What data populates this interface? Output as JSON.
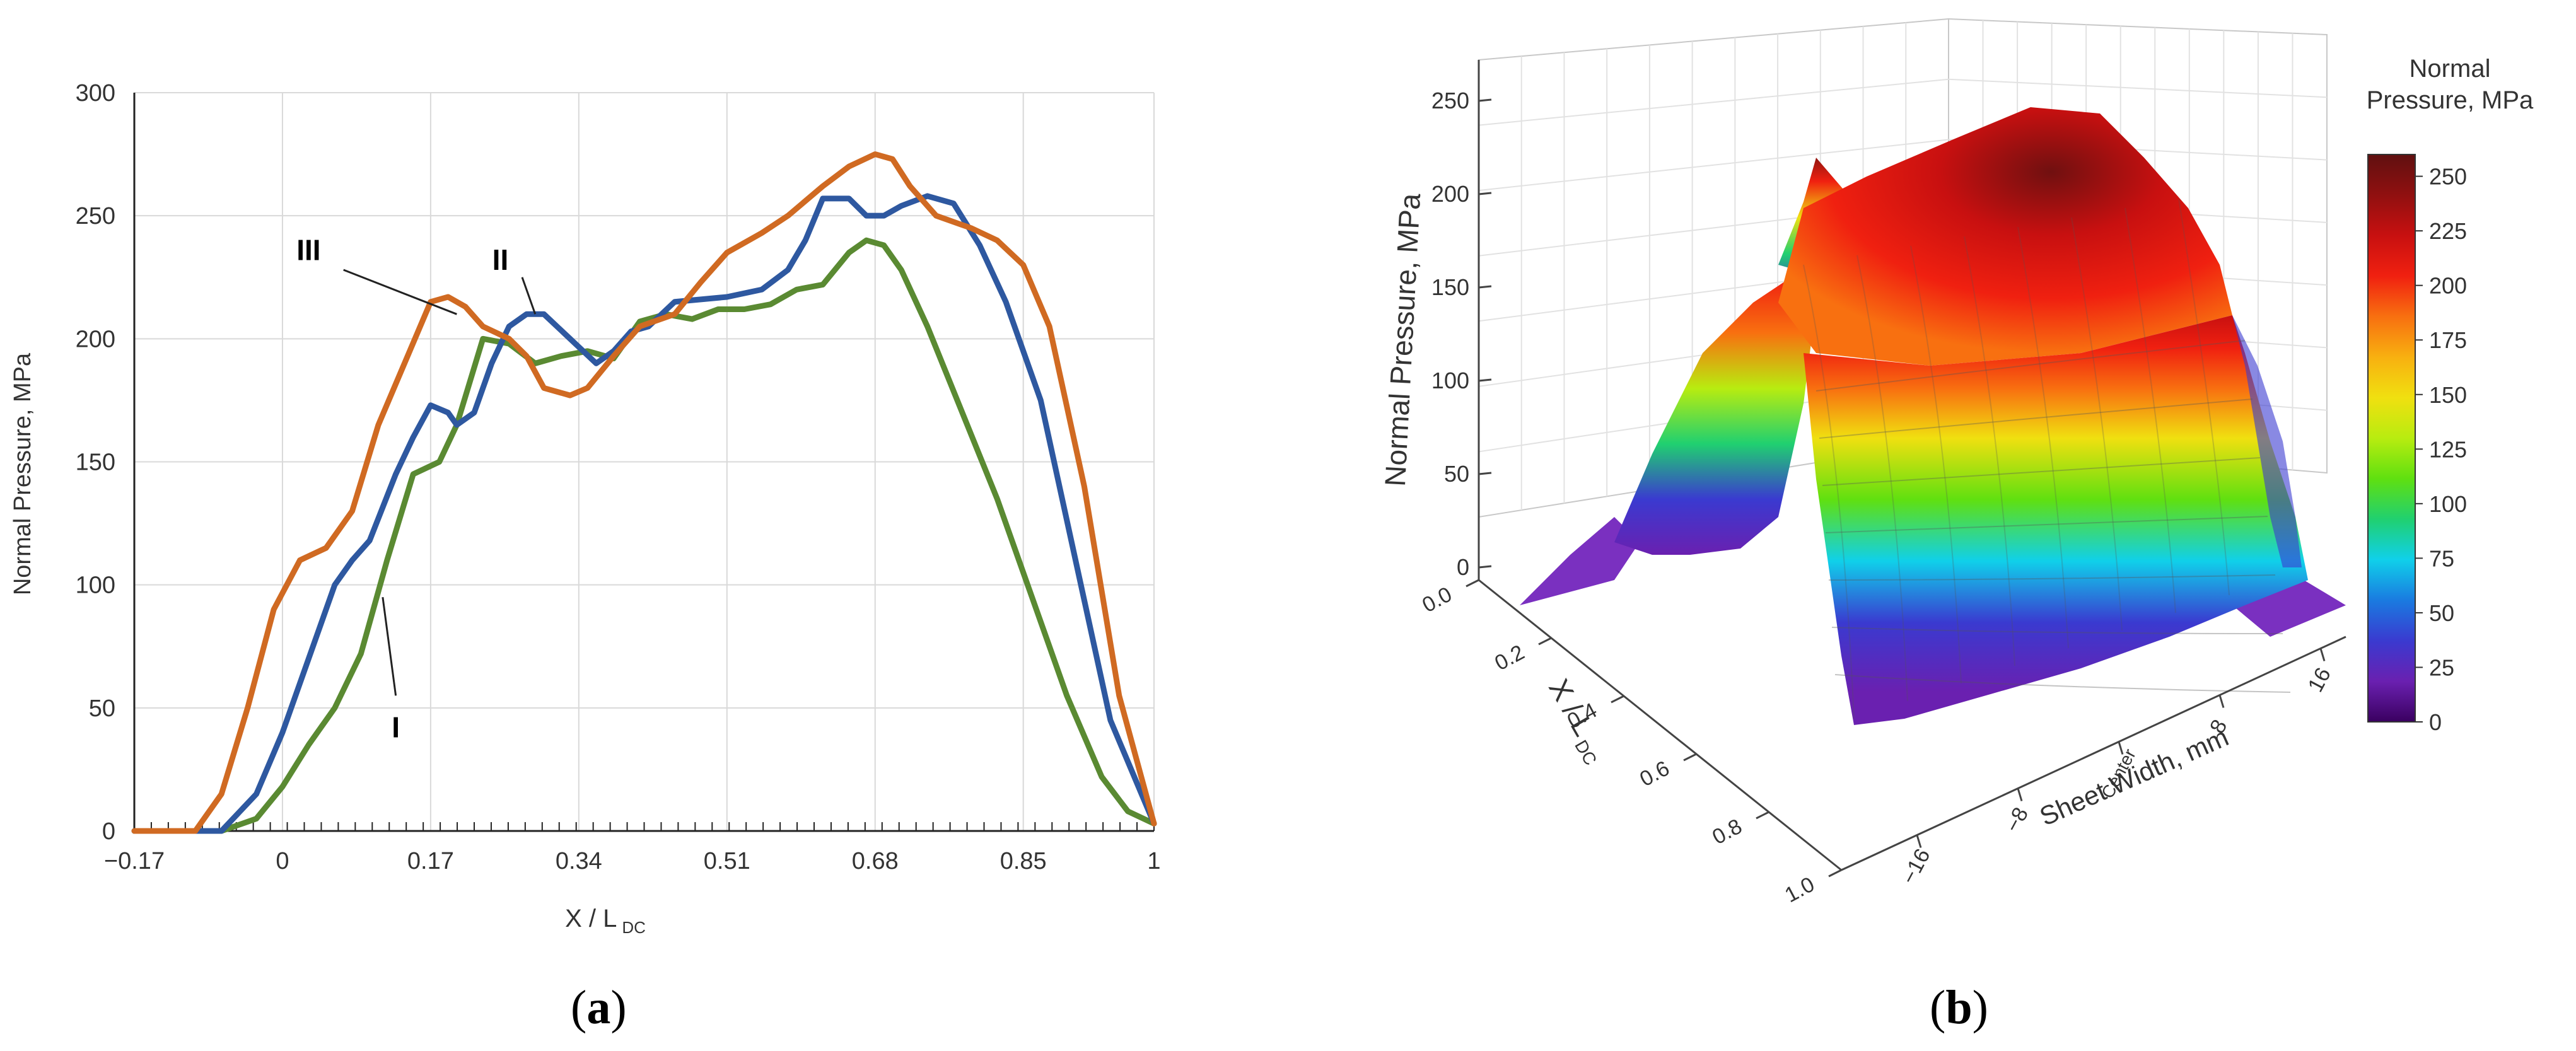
{
  "panels": [
    {
      "open": "(",
      "letter": "a",
      "close": ")"
    },
    {
      "open": "(",
      "letter": "b",
      "close": ")"
    }
  ],
  "chart_data": [
    {
      "type": "line",
      "panel": "a",
      "title": "",
      "xlabel": "X / L",
      "xlabel_sub": "DC",
      "ylabel": "Normal Pressure, MPa",
      "xlim": [
        -0.17,
        1.0
      ],
      "ylim": [
        0,
        300
      ],
      "xticks": [
        -0.17,
        0,
        0.17,
        0.34,
        0.51,
        0.68,
        0.85,
        1
      ],
      "xtick_labels": [
        "−0.17",
        "0",
        "0.17",
        "0.34",
        "0.51",
        "0.68",
        "0.85",
        "1"
      ],
      "yticks": [
        0,
        50,
        100,
        150,
        200,
        250,
        300
      ],
      "grid": true,
      "series": [
        {
          "name": "I",
          "color": "#5a8a32",
          "x": [
            -0.17,
            -0.07,
            -0.03,
            0,
            0.03,
            0.06,
            0.09,
            0.12,
            0.15,
            0.18,
            0.2,
            0.23,
            0.26,
            0.29,
            0.32,
            0.35,
            0.38,
            0.41,
            0.44,
            0.47,
            0.5,
            0.53,
            0.56,
            0.59,
            0.62,
            0.65,
            0.67,
            0.69,
            0.71,
            0.74,
            0.78,
            0.82,
            0.86,
            0.9,
            0.94,
            0.97,
            1.0
          ],
          "y": [
            0,
            0,
            5,
            18,
            35,
            50,
            72,
            110,
            145,
            150,
            165,
            200,
            198,
            190,
            193,
            195,
            192,
            207,
            210,
            208,
            212,
            212,
            214,
            220,
            222,
            235,
            240,
            238,
            228,
            205,
            170,
            135,
            95,
            55,
            22,
            8,
            3
          ]
        },
        {
          "name": "II",
          "color": "#2e58a0",
          "x": [
            -0.17,
            -0.07,
            -0.03,
            0,
            0.03,
            0.06,
            0.08,
            0.1,
            0.13,
            0.15,
            0.17,
            0.19,
            0.2,
            0.22,
            0.24,
            0.26,
            0.28,
            0.3,
            0.33,
            0.36,
            0.38,
            0.4,
            0.42,
            0.45,
            0.48,
            0.51,
            0.55,
            0.58,
            0.6,
            0.62,
            0.65,
            0.67,
            0.69,
            0.71,
            0.74,
            0.77,
            0.8,
            0.83,
            0.87,
            0.91,
            0.95,
            1.0
          ],
          "y": [
            0,
            0,
            15,
            40,
            70,
            100,
            110,
            118,
            145,
            160,
            173,
            170,
            165,
            170,
            190,
            205,
            210,
            210,
            200,
            190,
            195,
            203,
            205,
            215,
            216,
            217,
            220,
            228,
            240,
            257,
            257,
            250,
            250,
            254,
            258,
            255,
            238,
            215,
            175,
            110,
            45,
            3
          ]
        },
        {
          "name": "III",
          "color": "#d06a22",
          "x": [
            -0.17,
            -0.1,
            -0.07,
            -0.04,
            -0.01,
            0.02,
            0.05,
            0.08,
            0.11,
            0.14,
            0.17,
            0.19,
            0.21,
            0.23,
            0.26,
            0.28,
            0.3,
            0.33,
            0.35,
            0.38,
            0.41,
            0.45,
            0.48,
            0.51,
            0.55,
            0.58,
            0.62,
            0.65,
            0.68,
            0.7,
            0.72,
            0.75,
            0.79,
            0.82,
            0.85,
            0.88,
            0.92,
            0.96,
            1.0
          ],
          "y": [
            0,
            0,
            15,
            50,
            90,
            110,
            115,
            130,
            165,
            190,
            215,
            217,
            213,
            205,
            200,
            193,
            180,
            177,
            180,
            193,
            205,
            210,
            223,
            235,
            243,
            250,
            262,
            270,
            275,
            273,
            262,
            250,
            245,
            240,
            230,
            205,
            140,
            55,
            3
          ]
        }
      ],
      "annotations": [
        {
          "text": "III",
          "series": "III",
          "at_x": 0.2,
          "at_y": 210
        },
        {
          "text": "II",
          "series": "II",
          "at_x": 0.29,
          "at_y": 210
        },
        {
          "text": "I",
          "series": "I",
          "at_x": 0.115,
          "at_y": 95
        }
      ]
    },
    {
      "type": "surface3d",
      "panel": "b",
      "title": "",
      "xlabel": "X / L",
      "xlabel_sub": "DC",
      "ylabel": "Sheet Width, mm",
      "zlabel": "Normal Pressure, MPa",
      "xticks": [
        "0.0",
        "0.2",
        "0.4",
        "0.6",
        "0.8",
        "1.0"
      ],
      "yticks": [
        "−16",
        "−8",
        "Center",
        "8",
        "16"
      ],
      "zticks": [
        "0",
        "50",
        "100",
        "150",
        "200",
        "250"
      ],
      "zlim": [
        0,
        260
      ],
      "colorbar": {
        "title_line1": "Normal",
        "title_line2": "Pressure, MPa",
        "ticks": [
          "0",
          "25",
          "50",
          "75",
          "100",
          "125",
          "150",
          "175",
          "200",
          "225",
          "250"
        ],
        "min": 0,
        "max": 260,
        "colors": [
          "#3a0060",
          "#6a20b0",
          "#3a3ad0",
          "#1a7ae0",
          "#10d0ea",
          "#20d070",
          "#60e010",
          "#b8ec10",
          "#f0e010",
          "#f8b010",
          "#f87010",
          "#f02010",
          "#c81010",
          "#901010",
          "#601010"
        ]
      }
    }
  ]
}
